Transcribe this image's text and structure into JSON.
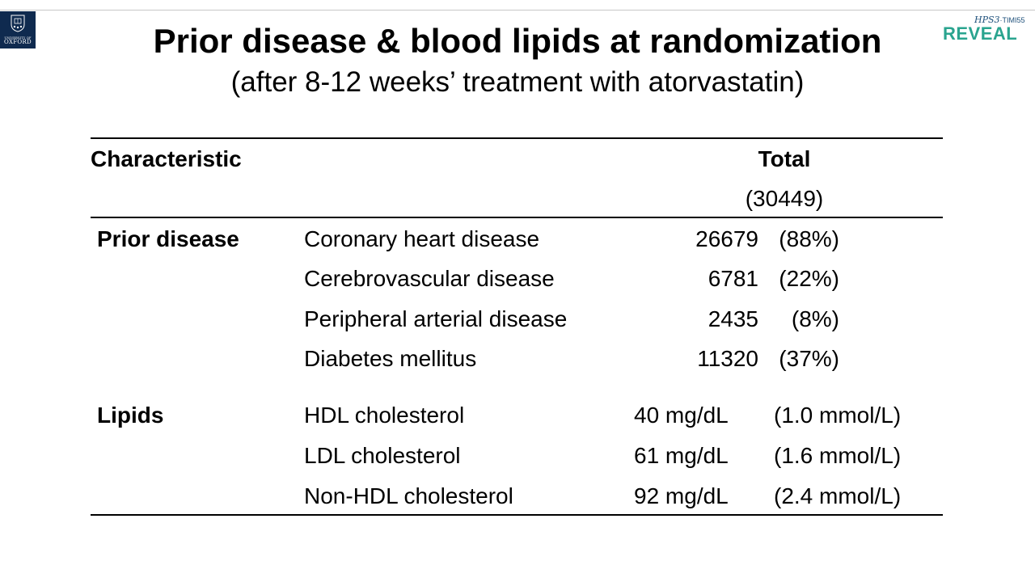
{
  "logos": {
    "oxford": {
      "university": "UNIVERSITY OF",
      "name": "OXFORD"
    },
    "reveal": {
      "prefix": "HPS3",
      "suffix": "TIMI55",
      "name": "REVEAL"
    }
  },
  "title": "Prior disease & blood lipids at randomization",
  "subtitle": "(after 8-12 weeks’ treatment with atorvastatin)",
  "table": {
    "header": {
      "characteristic": "Characteristic",
      "total": "Total",
      "total_n": "(30449)"
    },
    "prior_disease": {
      "label": "Prior disease",
      "rows": [
        {
          "name": "Coronary heart disease",
          "count": "26679",
          "pct": "(88%)"
        },
        {
          "name": "Cerebrovascular disease",
          "count": "6781",
          "pct": "(22%)"
        },
        {
          "name": "Peripheral arterial disease",
          "count": "2435",
          "pct": "(8%)"
        },
        {
          "name": "Diabetes mellitus",
          "count": "11320",
          "pct": "(37%)"
        }
      ]
    },
    "lipids": {
      "label": "Lipids",
      "rows": [
        {
          "name": "HDL cholesterol",
          "value": "40 mg/dL",
          "alt": "(1.0 mmol/L)"
        },
        {
          "name": "LDL cholesterol",
          "value": "61 mg/dL",
          "alt": "(1.6 mmol/L)"
        },
        {
          "name": "Non-HDL cholesterol",
          "value": "92 mg/dL",
          "alt": "(2.4 mmol/L)"
        }
      ]
    }
  }
}
